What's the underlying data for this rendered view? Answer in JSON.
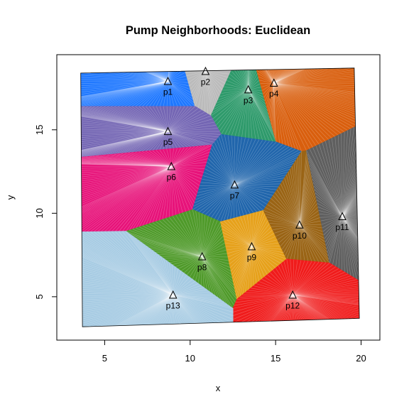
{
  "chart_data": {
    "type": "scatter",
    "title": "Pump Neighborhoods: Euclidean",
    "xlabel": "x",
    "ylabel": "y",
    "xlim": [
      2.2,
      21.1
    ],
    "ylim": [
      2.4,
      19.5
    ],
    "x_ticks": [
      5,
      10,
      15,
      20
    ],
    "y_ticks": [
      5,
      10,
      15
    ],
    "grid": false,
    "marker": "open-triangle",
    "boundary": [
      [
        3.6,
        18.4
      ],
      [
        19.6,
        18.7
      ],
      [
        19.9,
        3.7
      ],
      [
        3.7,
        3.2
      ]
    ],
    "pumps": [
      {
        "label": "p1",
        "x": 8.7,
        "y": 17.9,
        "color": "#1f78ff"
      },
      {
        "label": "p2",
        "x": 10.9,
        "y": 18.5,
        "color": "#bbbbbb"
      },
      {
        "label": "p3",
        "x": 13.4,
        "y": 17.4,
        "color": "#2e9a6b"
      },
      {
        "label": "p4",
        "x": 14.9,
        "y": 17.8,
        "color": "#d95f0e"
      },
      {
        "label": "p5",
        "x": 8.7,
        "y": 14.9,
        "color": "#7466b4"
      },
      {
        "label": "p6",
        "x": 8.9,
        "y": 12.8,
        "color": "#e7137a"
      },
      {
        "label": "p7",
        "x": 12.6,
        "y": 11.7,
        "color": "#2166ac"
      },
      {
        "label": "p8",
        "x": 10.7,
        "y": 7.4,
        "color": "#4f9a2a"
      },
      {
        "label": "p9",
        "x": 13.6,
        "y": 8.0,
        "color": "#e6a11b"
      },
      {
        "label": "p10",
        "x": 16.4,
        "y": 9.3,
        "color": "#9a6415"
      },
      {
        "label": "p11",
        "x": 18.9,
        "y": 9.8,
        "color": "#5f5f5f"
      },
      {
        "label": "p12",
        "x": 16.0,
        "y": 5.1,
        "color": "#f01c1c"
      },
      {
        "label": "p13",
        "x": 9.0,
        "y": 5.1,
        "color": "#a6cbe3"
      }
    ]
  }
}
